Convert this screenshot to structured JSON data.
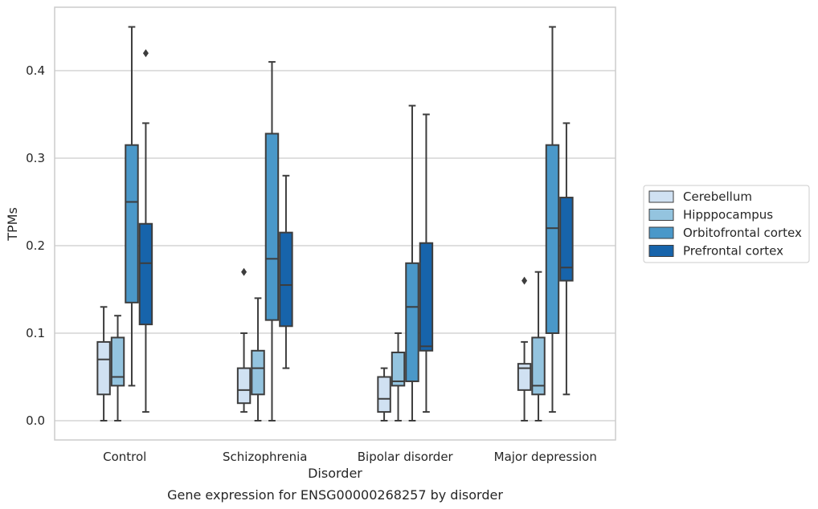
{
  "chart_data": {
    "type": "box",
    "caption": "Gene expression for ENSG00000268257 by disorder",
    "xlabel": "Disorder",
    "ylabel": "TPMs",
    "ylim": [
      -0.022,
      0.47
    ],
    "yticks": [
      0.0,
      0.1,
      0.2,
      0.3,
      0.4
    ],
    "ytick_labels": [
      "0.0",
      "0.1",
      "0.2",
      "0.3",
      "0.4"
    ],
    "grid": "horizontal",
    "legend_position": "right",
    "categories": [
      "Control",
      "Schizophrenia",
      "Bipolar disorder",
      "Major depression"
    ],
    "series": [
      {
        "name": "Cerebellum",
        "color": "#d0e1f2",
        "boxes": [
          {
            "whislo": 0.0,
            "q1": 0.03,
            "med": 0.07,
            "q3": 0.09,
            "whishi": 0.13,
            "fliers": []
          },
          {
            "whislo": 0.01,
            "q1": 0.02,
            "med": 0.035,
            "q3": 0.06,
            "whishi": 0.1,
            "fliers": [
              0.17
            ]
          },
          {
            "whislo": 0.0,
            "q1": 0.01,
            "med": 0.025,
            "q3": 0.05,
            "whishi": 0.06,
            "fliers": []
          },
          {
            "whislo": 0.0,
            "q1": 0.035,
            "med": 0.06,
            "q3": 0.065,
            "whishi": 0.09,
            "fliers": [
              0.16
            ]
          }
        ]
      },
      {
        "name": "Hipppocampus",
        "color": "#94c4df",
        "boxes": [
          {
            "whislo": 0.0,
            "q1": 0.04,
            "med": 0.05,
            "q3": 0.095,
            "whishi": 0.12,
            "fliers": []
          },
          {
            "whislo": 0.0,
            "q1": 0.03,
            "med": 0.06,
            "q3": 0.08,
            "whishi": 0.14,
            "fliers": []
          },
          {
            "whislo": 0.0,
            "q1": 0.04,
            "med": 0.045,
            "q3": 0.078,
            "whishi": 0.1,
            "fliers": []
          },
          {
            "whislo": 0.0,
            "q1": 0.03,
            "med": 0.04,
            "q3": 0.095,
            "whishi": 0.17,
            "fliers": []
          }
        ]
      },
      {
        "name": "Orbitofrontal cortex",
        "color": "#4a98c9",
        "boxes": [
          {
            "whislo": 0.04,
            "q1": 0.135,
            "med": 0.25,
            "q3": 0.315,
            "whishi": 0.45,
            "fliers": []
          },
          {
            "whislo": 0.0,
            "q1": 0.115,
            "med": 0.185,
            "q3": 0.328,
            "whishi": 0.41,
            "fliers": []
          },
          {
            "whislo": 0.0,
            "q1": 0.045,
            "med": 0.13,
            "q3": 0.18,
            "whishi": 0.36,
            "fliers": []
          },
          {
            "whislo": 0.01,
            "q1": 0.1,
            "med": 0.22,
            "q3": 0.315,
            "whishi": 0.45,
            "fliers": []
          }
        ]
      },
      {
        "name": "Prefrontal cortex",
        "color": "#1764ab",
        "boxes": [
          {
            "whislo": 0.01,
            "q1": 0.11,
            "med": 0.18,
            "q3": 0.225,
            "whishi": 0.34,
            "fliers": [
              0.42
            ]
          },
          {
            "whislo": 0.06,
            "q1": 0.108,
            "med": 0.155,
            "q3": 0.215,
            "whishi": 0.28,
            "fliers": []
          },
          {
            "whislo": 0.01,
            "q1": 0.08,
            "med": 0.085,
            "q3": 0.203,
            "whishi": 0.35,
            "fliers": []
          },
          {
            "whislo": 0.03,
            "q1": 0.16,
            "med": 0.175,
            "q3": 0.255,
            "whishi": 0.34,
            "fliers": []
          }
        ]
      }
    ]
  }
}
